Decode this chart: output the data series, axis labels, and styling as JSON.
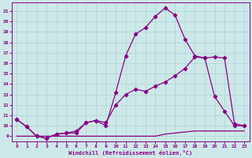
{
  "xlabel": "Windchill (Refroidissement éolien,°C)",
  "background_color": "#cde8e8",
  "line_color": "#880088",
  "xlim": [
    -0.5,
    23.5
  ],
  "ylim": [
    8.5,
    21.8
  ],
  "yticks": [
    9,
    10,
    11,
    12,
    13,
    14,
    15,
    16,
    17,
    18,
    19,
    20,
    21
  ],
  "xticks": [
    0,
    1,
    2,
    3,
    4,
    5,
    6,
    7,
    8,
    9,
    10,
    11,
    12,
    13,
    14,
    15,
    16,
    17,
    18,
    19,
    20,
    21,
    22,
    23
  ],
  "line1_x": [
    0,
    1,
    2,
    3,
    4,
    5,
    6,
    7,
    8,
    9,
    10,
    11,
    12,
    13,
    14,
    15,
    16,
    17,
    18,
    19,
    20,
    21,
    22,
    23
  ],
  "line1_y": [
    10.6,
    9.9,
    9.0,
    8.8,
    9.2,
    9.3,
    9.3,
    10.3,
    10.5,
    10.0,
    13.2,
    16.7,
    18.8,
    19.4,
    20.5,
    21.3,
    20.6,
    18.3,
    16.7,
    16.5,
    12.8,
    11.4,
    10.0,
    10.0
  ],
  "line2_x": [
    0,
    1,
    2,
    3,
    4,
    5,
    6,
    7,
    8,
    9,
    10,
    11,
    12,
    13,
    14,
    15,
    16,
    17,
    18,
    19,
    20,
    21,
    22,
    23
  ],
  "line2_y": [
    10.6,
    9.9,
    9.0,
    8.8,
    9.2,
    9.3,
    9.5,
    10.3,
    10.5,
    10.3,
    12.0,
    13.0,
    13.5,
    13.3,
    13.8,
    14.2,
    14.8,
    15.5,
    16.6,
    16.5,
    16.6,
    16.5,
    10.2,
    10.0
  ],
  "line3_x": [
    0,
    1,
    2,
    3,
    4,
    5,
    6,
    7,
    8,
    9,
    10,
    11,
    12,
    13,
    14,
    15,
    16,
    17,
    18,
    19,
    20,
    21,
    22,
    23
  ],
  "line3_y": [
    9.0,
    9.0,
    9.0,
    9.0,
    9.0,
    9.0,
    9.0,
    9.0,
    9.0,
    9.0,
    9.0,
    9.0,
    9.0,
    9.0,
    9.0,
    9.2,
    9.3,
    9.4,
    9.5,
    9.5,
    9.5,
    9.5,
    9.5,
    9.5
  ],
  "grid_color": "#aad4d4",
  "marker": "D",
  "markersize": 2.2,
  "linewidth": 0.9
}
